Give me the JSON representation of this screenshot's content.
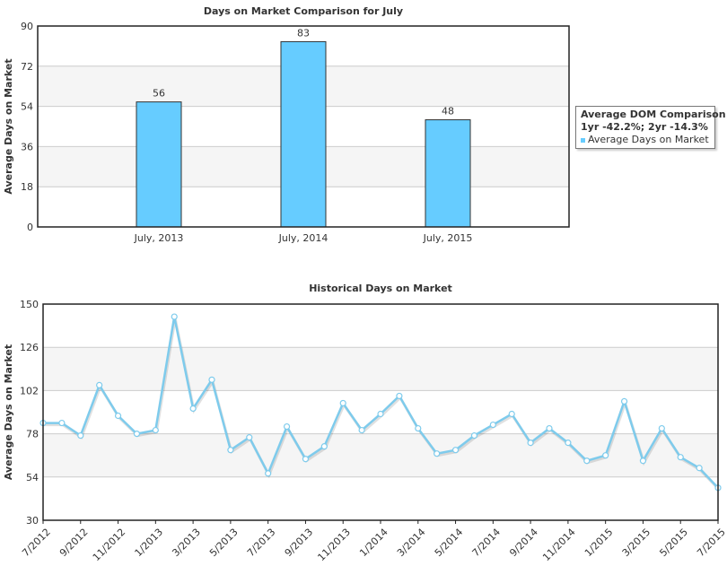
{
  "colors": {
    "bar": "#66ccff",
    "bar_stroke": "#333333",
    "line": "#7ecbec",
    "marker_fill": "#ffffff",
    "band": "#f5f5f5",
    "grid": "#cccccc"
  },
  "legend": {
    "title": "Average DOM Comparison",
    "subtitle": "1yr -42.2%; 2yr -14.3%",
    "item": "Average Days on Market"
  },
  "chart_data": [
    {
      "type": "bar",
      "title": "Days on Market Comparison for July",
      "xlabel": "",
      "ylabel": "Average Days on Market",
      "ylim": [
        0,
        90
      ],
      "yticks": [
        0,
        18,
        36,
        54,
        72,
        90
      ],
      "categories": [
        "July, 2013",
        "July, 2014",
        "July, 2015"
      ],
      "series": [
        {
          "name": "Average Days on Market",
          "values": [
            56,
            83,
            48
          ]
        }
      ],
      "data_labels": [
        "56",
        "83",
        "48"
      ],
      "grid": true,
      "legend_position": "right"
    },
    {
      "type": "line",
      "title": "Historical Days on Market",
      "xlabel": "",
      "ylabel": "Average Days on Market",
      "ylim": [
        30,
        150
      ],
      "yticks": [
        30,
        54,
        78,
        102,
        126,
        150
      ],
      "x": [
        "7/2012",
        "8/2012",
        "9/2012",
        "10/2012",
        "11/2012",
        "12/2012",
        "1/2013",
        "2/2013",
        "3/2013",
        "4/2013",
        "5/2013",
        "6/2013",
        "7/2013",
        "8/2013",
        "9/2013",
        "10/2013",
        "11/2013",
        "12/2013",
        "1/2014",
        "2/2014",
        "3/2014",
        "4/2014",
        "5/2014",
        "6/2014",
        "7/2014",
        "8/2014",
        "9/2014",
        "10/2014",
        "11/2014",
        "12/2014",
        "1/2015",
        "2/2015",
        "3/2015",
        "4/2015",
        "5/2015",
        "6/2015",
        "7/2015"
      ],
      "xtick_labels": [
        "7/2012",
        "9/2012",
        "11/2012",
        "1/2013",
        "3/2013",
        "5/2013",
        "7/2013",
        "9/2013",
        "11/2013",
        "1/2014",
        "3/2014",
        "5/2014",
        "7/2014",
        "9/2014",
        "11/2014",
        "1/2015",
        "3/2015",
        "5/2015",
        "7/2015"
      ],
      "series": [
        {
          "values": [
            84,
            84,
            77,
            105,
            88,
            78,
            80,
            143,
            92,
            108,
            69,
            76,
            56,
            82,
            64,
            71,
            95,
            80,
            89,
            99,
            81,
            67,
            69,
            77,
            83,
            89,
            73,
            81,
            73,
            63,
            66,
            96,
            63,
            81,
            65,
            59,
            48
          ]
        }
      ],
      "grid": true
    }
  ]
}
